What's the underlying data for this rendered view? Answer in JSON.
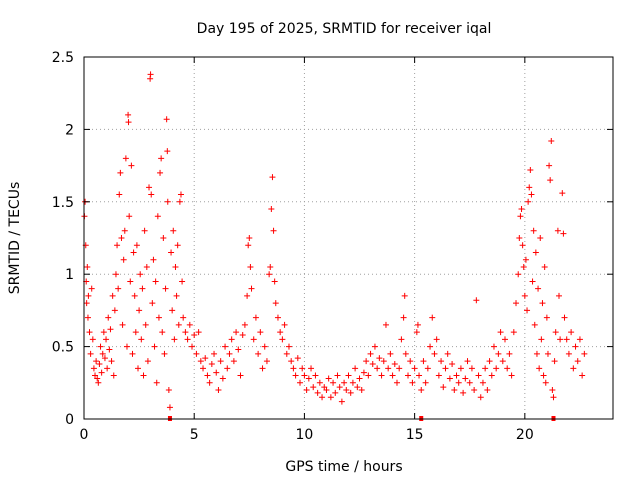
{
  "chart_data": {
    "type": "scatter",
    "title": "Day 195 of 2025, SRMTID for receiver iqal",
    "xlabel": "GPS time / hours",
    "ylabel": "SRMTID / TECUs",
    "xlim": [
      0,
      24
    ],
    "ylim": [
      0,
      2.5
    ],
    "xticks": [
      0,
      5,
      10,
      15,
      20
    ],
    "xtick_labels": [
      "0",
      "5",
      "10",
      "15",
      "20"
    ],
    "yticks": [
      0,
      0.5,
      1,
      1.5,
      2,
      2.5
    ],
    "ytick_labels": [
      "0",
      "0.5",
      "1",
      "1.5",
      "2",
      "2.5"
    ],
    "grid": true,
    "marker": "+",
    "color": "#ff0000",
    "baseline_markers_x": [
      3.9,
      15.3,
      21.3
    ],
    "series": [
      {
        "name": "SRMTID",
        "points": [
          [
            0.02,
            1.4
          ],
          [
            0.05,
            1.5
          ],
          [
            0.08,
            1.2
          ],
          [
            0.1,
            0.95
          ],
          [
            0.12,
            0.8
          ],
          [
            0.15,
            1.05
          ],
          [
            0.18,
            0.7
          ],
          [
            0.2,
            0.85
          ],
          [
            0.25,
            0.6
          ],
          [
            0.3,
            0.45
          ],
          [
            0.35,
            0.9
          ],
          [
            0.4,
            0.55
          ],
          [
            0.45,
            0.35
          ],
          [
            0.5,
            0.3
          ],
          [
            0.55,
            0.4
          ],
          [
            0.6,
            0.28
          ],
          [
            0.65,
            0.25
          ],
          [
            0.7,
            0.38
          ],
          [
            0.75,
            0.5
          ],
          [
            0.8,
            0.32
          ],
          [
            0.85,
            0.45
          ],
          [
            0.9,
            0.6
          ],
          [
            0.95,
            0.42
          ],
          [
            1.0,
            0.55
          ],
          [
            1.05,
            0.35
          ],
          [
            1.1,
            0.7
          ],
          [
            1.15,
            0.48
          ],
          [
            1.2,
            0.62
          ],
          [
            1.25,
            0.4
          ],
          [
            1.3,
            0.85
          ],
          [
            1.35,
            0.3
          ],
          [
            1.4,
            0.75
          ],
          [
            1.45,
            1.0
          ],
          [
            1.5,
            1.2
          ],
          [
            1.55,
            0.9
          ],
          [
            1.6,
            1.55
          ],
          [
            1.65,
            1.7
          ],
          [
            1.7,
            1.25
          ],
          [
            1.75,
            0.65
          ],
          [
            1.8,
            1.1
          ],
          [
            1.85,
            1.3
          ],
          [
            1.9,
            1.8
          ],
          [
            1.95,
            0.5
          ],
          [
            2.0,
            2.1
          ],
          [
            2.02,
            2.05
          ],
          [
            2.05,
            1.4
          ],
          [
            2.1,
            0.95
          ],
          [
            2.15,
            1.75
          ],
          [
            2.2,
            0.45
          ],
          [
            2.25,
            1.15
          ],
          [
            2.3,
            0.85
          ],
          [
            2.35,
            0.6
          ],
          [
            2.4,
            1.2
          ],
          [
            2.45,
            0.35
          ],
          [
            2.5,
            0.75
          ],
          [
            2.55,
            1.0
          ],
          [
            2.6,
            0.55
          ],
          [
            2.65,
            0.9
          ],
          [
            2.7,
            0.3
          ],
          [
            2.75,
            1.3
          ],
          [
            2.8,
            0.65
          ],
          [
            2.85,
            1.05
          ],
          [
            2.9,
            0.4
          ],
          [
            2.95,
            1.6
          ],
          [
            3.0,
            2.35
          ],
          [
            3.02,
            2.38
          ],
          [
            3.05,
            1.55
          ],
          [
            3.1,
            0.8
          ],
          [
            3.15,
            1.1
          ],
          [
            3.2,
            0.5
          ],
          [
            3.25,
            0.95
          ],
          [
            3.3,
            0.25
          ],
          [
            3.35,
            1.4
          ],
          [
            3.4,
            0.7
          ],
          [
            3.45,
            1.7
          ],
          [
            3.5,
            1.8
          ],
          [
            3.55,
            0.6
          ],
          [
            3.6,
            1.25
          ],
          [
            3.65,
            0.45
          ],
          [
            3.7,
            0.9
          ],
          [
            3.75,
            2.07
          ],
          [
            3.78,
            1.85
          ],
          [
            3.8,
            1.5
          ],
          [
            3.85,
            0.2
          ],
          [
            3.9,
            0.08
          ],
          [
            3.95,
            1.15
          ],
          [
            4.0,
            0.75
          ],
          [
            4.05,
            1.3
          ],
          [
            4.1,
            0.55
          ],
          [
            4.15,
            1.05
          ],
          [
            4.2,
            0.85
          ],
          [
            4.25,
            1.2
          ],
          [
            4.3,
            0.65
          ],
          [
            4.35,
            1.5
          ],
          [
            4.4,
            1.55
          ],
          [
            4.45,
            0.95
          ],
          [
            4.5,
            0.7
          ],
          [
            4.6,
            0.6
          ],
          [
            4.7,
            0.55
          ],
          [
            4.8,
            0.65
          ],
          [
            4.9,
            0.5
          ],
          [
            5.0,
            0.58
          ],
          [
            5.1,
            0.45
          ],
          [
            5.2,
            0.6
          ],
          [
            5.3,
            0.4
          ],
          [
            5.4,
            0.35
          ],
          [
            5.5,
            0.42
          ],
          [
            5.6,
            0.3
          ],
          [
            5.7,
            0.25
          ],
          [
            5.8,
            0.38
          ],
          [
            5.9,
            0.45
          ],
          [
            6.0,
            0.32
          ],
          [
            6.1,
            0.2
          ],
          [
            6.2,
            0.4
          ],
          [
            6.3,
            0.28
          ],
          [
            6.4,
            0.5
          ],
          [
            6.5,
            0.35
          ],
          [
            6.6,
            0.45
          ],
          [
            6.7,
            0.55
          ],
          [
            6.8,
            0.4
          ],
          [
            6.9,
            0.6
          ],
          [
            7.0,
            0.48
          ],
          [
            7.1,
            0.3
          ],
          [
            7.2,
            0.58
          ],
          [
            7.3,
            0.65
          ],
          [
            7.4,
            0.85
          ],
          [
            7.45,
            1.2
          ],
          [
            7.5,
            1.25
          ],
          [
            7.55,
            1.05
          ],
          [
            7.6,
            0.9
          ],
          [
            7.7,
            0.55
          ],
          [
            7.8,
            0.7
          ],
          [
            7.9,
            0.45
          ],
          [
            8.0,
            0.6
          ],
          [
            8.1,
            0.35
          ],
          [
            8.2,
            0.5
          ],
          [
            8.3,
            0.4
          ],
          [
            8.4,
            1.0
          ],
          [
            8.45,
            1.05
          ],
          [
            8.5,
            1.45
          ],
          [
            8.55,
            1.67
          ],
          [
            8.6,
            1.3
          ],
          [
            8.65,
            0.95
          ],
          [
            8.7,
            0.8
          ],
          [
            8.8,
            0.7
          ],
          [
            8.9,
            0.6
          ],
          [
            9.0,
            0.55
          ],
          [
            9.1,
            0.65
          ],
          [
            9.2,
            0.45
          ],
          [
            9.3,
            0.5
          ],
          [
            9.4,
            0.4
          ],
          [
            9.5,
            0.35
          ],
          [
            9.6,
            0.3
          ],
          [
            9.7,
            0.42
          ],
          [
            9.8,
            0.25
          ],
          [
            9.9,
            0.35
          ],
          [
            10.0,
            0.3
          ],
          [
            10.1,
            0.2
          ],
          [
            10.2,
            0.28
          ],
          [
            10.3,
            0.35
          ],
          [
            10.4,
            0.22
          ],
          [
            10.5,
            0.3
          ],
          [
            10.6,
            0.18
          ],
          [
            10.7,
            0.25
          ],
          [
            10.8,
            0.15
          ],
          [
            10.9,
            0.22
          ],
          [
            11.0,
            0.2
          ],
          [
            11.1,
            0.28
          ],
          [
            11.2,
            0.15
          ],
          [
            11.3,
            0.25
          ],
          [
            11.4,
            0.18
          ],
          [
            11.5,
            0.3
          ],
          [
            11.6,
            0.22
          ],
          [
            11.7,
            0.12
          ],
          [
            11.8,
            0.25
          ],
          [
            11.9,
            0.2
          ],
          [
            12.0,
            0.3
          ],
          [
            12.1,
            0.18
          ],
          [
            12.2,
            0.25
          ],
          [
            12.3,
            0.35
          ],
          [
            12.4,
            0.22
          ],
          [
            12.5,
            0.28
          ],
          [
            12.6,
            0.2
          ],
          [
            12.7,
            0.32
          ],
          [
            12.8,
            0.4
          ],
          [
            12.9,
            0.3
          ],
          [
            13.0,
            0.45
          ],
          [
            13.1,
            0.38
          ],
          [
            13.2,
            0.5
          ],
          [
            13.3,
            0.35
          ],
          [
            13.4,
            0.42
          ],
          [
            13.5,
            0.3
          ],
          [
            13.6,
            0.4
          ],
          [
            13.7,
            0.65
          ],
          [
            13.8,
            0.35
          ],
          [
            13.9,
            0.45
          ],
          [
            14.0,
            0.3
          ],
          [
            14.1,
            0.38
          ],
          [
            14.2,
            0.25
          ],
          [
            14.3,
            0.35
          ],
          [
            14.4,
            0.55
          ],
          [
            14.5,
            0.7
          ],
          [
            14.55,
            0.85
          ],
          [
            14.6,
            0.45
          ],
          [
            14.7,
            0.3
          ],
          [
            14.8,
            0.4
          ],
          [
            14.9,
            0.25
          ],
          [
            15.0,
            0.35
          ],
          [
            15.1,
            0.6
          ],
          [
            15.15,
            0.65
          ],
          [
            15.2,
            0.3
          ],
          [
            15.3,
            0.2
          ],
          [
            15.4,
            0.4
          ],
          [
            15.5,
            0.25
          ],
          [
            15.6,
            0.35
          ],
          [
            15.7,
            0.5
          ],
          [
            15.8,
            0.7
          ],
          [
            15.9,
            0.45
          ],
          [
            16.0,
            0.55
          ],
          [
            16.1,
            0.3
          ],
          [
            16.2,
            0.4
          ],
          [
            16.3,
            0.22
          ],
          [
            16.4,
            0.35
          ],
          [
            16.5,
            0.45
          ],
          [
            16.6,
            0.28
          ],
          [
            16.7,
            0.38
          ],
          [
            16.8,
            0.2
          ],
          [
            16.9,
            0.3
          ],
          [
            17.0,
            0.25
          ],
          [
            17.1,
            0.35
          ],
          [
            17.2,
            0.18
          ],
          [
            17.3,
            0.28
          ],
          [
            17.4,
            0.4
          ],
          [
            17.5,
            0.25
          ],
          [
            17.6,
            0.35
          ],
          [
            17.7,
            0.2
          ],
          [
            17.8,
            0.82
          ],
          [
            17.9,
            0.3
          ],
          [
            18.0,
            0.15
          ],
          [
            18.1,
            0.25
          ],
          [
            18.2,
            0.35
          ],
          [
            18.3,
            0.2
          ],
          [
            18.4,
            0.4
          ],
          [
            18.5,
            0.3
          ],
          [
            18.6,
            0.5
          ],
          [
            18.7,
            0.35
          ],
          [
            18.8,
            0.45
          ],
          [
            18.9,
            0.6
          ],
          [
            19.0,
            0.4
          ],
          [
            19.1,
            0.55
          ],
          [
            19.2,
            0.35
          ],
          [
            19.3,
            0.45
          ],
          [
            19.4,
            0.3
          ],
          [
            19.5,
            0.6
          ],
          [
            19.6,
            0.8
          ],
          [
            19.7,
            1.0
          ],
          [
            19.75,
            1.25
          ],
          [
            19.8,
            1.4
          ],
          [
            19.85,
            1.45
          ],
          [
            19.9,
            1.2
          ],
          [
            19.95,
            1.05
          ],
          [
            20.0,
            0.85
          ],
          [
            20.05,
            1.1
          ],
          [
            20.1,
            0.75
          ],
          [
            20.15,
            1.5
          ],
          [
            20.2,
            1.6
          ],
          [
            20.25,
            1.72
          ],
          [
            20.3,
            1.55
          ],
          [
            20.35,
            0.95
          ],
          [
            20.4,
            1.3
          ],
          [
            20.45,
            0.65
          ],
          [
            20.5,
            1.15
          ],
          [
            20.55,
            0.45
          ],
          [
            20.6,
            0.9
          ],
          [
            20.65,
            0.35
          ],
          [
            20.7,
            1.25
          ],
          [
            20.75,
            0.55
          ],
          [
            20.8,
            0.8
          ],
          [
            20.85,
            0.3
          ],
          [
            20.9,
            1.05
          ],
          [
            20.95,
            0.25
          ],
          [
            21.0,
            0.7
          ],
          [
            21.05,
            0.45
          ],
          [
            21.1,
            1.75
          ],
          [
            21.15,
            1.65
          ],
          [
            21.2,
            1.92
          ],
          [
            21.25,
            0.2
          ],
          [
            21.3,
            0.15
          ],
          [
            21.35,
            0.4
          ],
          [
            21.4,
            0.6
          ],
          [
            21.5,
            1.3
          ],
          [
            21.55,
            0.85
          ],
          [
            21.6,
            0.55
          ],
          [
            21.7,
            1.56
          ],
          [
            21.75,
            1.28
          ],
          [
            21.8,
            0.7
          ],
          [
            21.9,
            0.55
          ],
          [
            22.0,
            0.45
          ],
          [
            22.1,
            0.6
          ],
          [
            22.2,
            0.35
          ],
          [
            22.3,
            0.5
          ],
          [
            22.4,
            0.4
          ],
          [
            22.5,
            0.55
          ],
          [
            22.6,
            0.3
          ],
          [
            22.7,
            0.45
          ]
        ]
      }
    ]
  }
}
